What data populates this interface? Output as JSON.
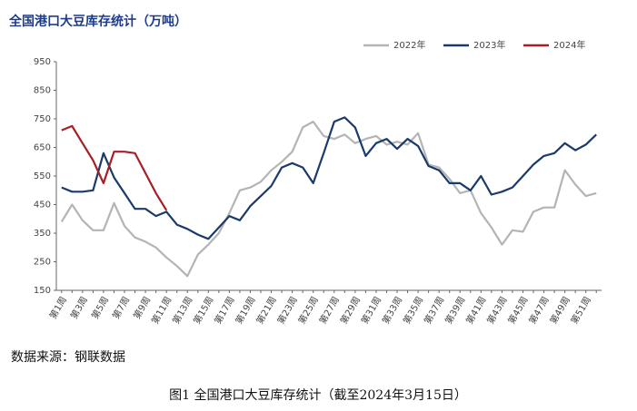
{
  "chart_data": {
    "type": "line",
    "title": "全国港口大豆库存统计（万吨）",
    "source": "数据来源：钢联数据",
    "caption": "图1 全国港口大豆库存统计（截至2024年3月15日）",
    "categories": [
      "第1周",
      null,
      "第3周",
      null,
      "第5周",
      null,
      "第7周",
      null,
      "第9周",
      null,
      "第11周",
      null,
      "第13周",
      null,
      "第15周",
      null,
      "第17周",
      null,
      "第19周",
      null,
      "第21周",
      null,
      "第23周",
      null,
      "第25周",
      null,
      "第27周",
      null,
      "第29周",
      null,
      "第31周",
      null,
      "第33周",
      null,
      "第35周",
      null,
      "第37周",
      null,
      "第39周",
      null,
      "第41周",
      null,
      "第43周",
      null,
      "第45周",
      null,
      "第47周",
      null,
      "第49周",
      null,
      "第51周",
      null
    ],
    "ylim": [
      150,
      950
    ],
    "yticks": [
      150,
      250,
      350,
      450,
      550,
      650,
      750,
      850,
      950
    ],
    "series": [
      {
        "name": "2022年",
        "color": "#b4b4b4",
        "values": [
          390,
          450,
          395,
          360,
          360,
          455,
          375,
          335,
          320,
          300,
          265,
          235,
          200,
          275,
          310,
          350,
          420,
          500,
          510,
          530,
          570,
          600,
          635,
          720,
          740,
          690,
          680,
          695,
          665,
          680,
          690,
          660,
          670,
          660,
          700,
          590,
          580,
          540,
          490,
          500,
          420,
          370,
          310,
          360,
          355,
          425,
          440,
          440,
          570,
          520,
          480,
          490
        ]
      },
      {
        "name": "2023年",
        "color": "#1b3a6b",
        "values": [
          510,
          495,
          495,
          500,
          630,
          545,
          490,
          435,
          435,
          410,
          425,
          380,
          365,
          345,
          330,
          370,
          410,
          395,
          445,
          480,
          515,
          580,
          595,
          580,
          525,
          630,
          740,
          755,
          720,
          620,
          665,
          680,
          645,
          680,
          655,
          585,
          570,
          525,
          525,
          500,
          550,
          485,
          495,
          510,
          550,
          590,
          620,
          630,
          665,
          640,
          660,
          695
        ]
      },
      {
        "name": "2024年",
        "color": "#a51f24",
        "values": [
          710,
          725,
          665,
          605,
          525,
          635,
          635,
          630,
          560,
          490,
          430,
          null,
          null,
          null,
          null,
          null,
          null,
          null,
          null,
          null,
          null,
          null,
          null,
          null,
          null,
          null,
          null,
          null,
          null,
          null,
          null,
          null,
          null,
          null,
          null,
          null,
          null,
          null,
          null,
          null,
          null,
          null,
          null,
          null,
          null,
          null,
          null,
          null,
          null,
          null,
          null,
          null
        ]
      }
    ]
  }
}
